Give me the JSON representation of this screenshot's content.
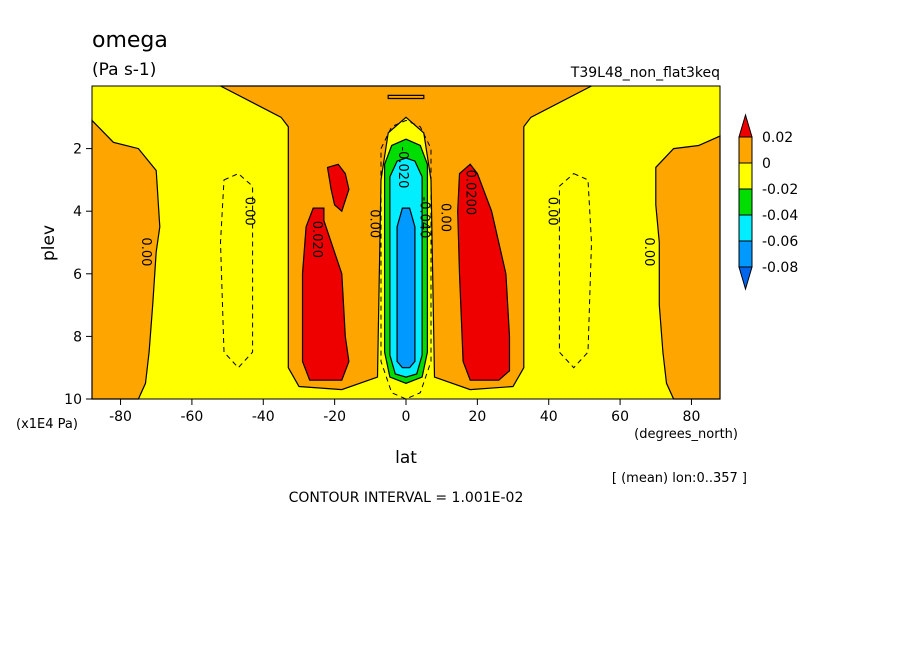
{
  "chart_data": {
    "type": "heatmap",
    "title": "omega",
    "units": "(Pa s-1)",
    "experiment": "T39L48_non_flat3keq",
    "xlabel": "lat",
    "x_units": "(degrees_north)",
    "ylabel": "plev",
    "y_units": "(x1E4 Pa)",
    "xlim": [
      -88,
      88
    ],
    "ylim": [
      10,
      0
    ],
    "x_ticks": [
      -80,
      -60,
      -40,
      -20,
      0,
      20,
      40,
      60,
      80
    ],
    "y_ticks": [
      2,
      4,
      6,
      8,
      10
    ],
    "x_tick_labels": [
      "-80",
      "-60",
      "-40",
      "-20",
      "0",
      "20",
      "40",
      "60",
      "80"
    ],
    "y_tick_labels": [
      "2",
      "4",
      "6",
      "8",
      "10"
    ],
    "averaging_note": "[ (mean) lon:0..357 ]",
    "contour_interval_text": "CONTOUR INTERVAL = 1.001E-02",
    "colorbar": {
      "labels": [
        "0.02",
        "0",
        "-0.02",
        "-0.04",
        "-0.06",
        "-0.08"
      ],
      "levels": [
        {
          "range": "> 0.02",
          "color": "#ee0000"
        },
        {
          "range": "0 to 0.02",
          "color": "#ffa500"
        },
        {
          "range": "-0.02 to 0",
          "color": "#ffff00"
        },
        {
          "range": "-0.04 to -0.02",
          "color": "#00dd00"
        },
        {
          "range": "-0.06 to -0.04",
          "color": "#00eeff"
        },
        {
          "range": "-0.08 to -0.06",
          "color": "#0099ff"
        },
        {
          "range": "< -0.08",
          "color": "#0066ee"
        }
      ]
    },
    "contour_labels": [
      {
        "text": "0.00",
        "lat": -74,
        "plev": 5.3
      },
      {
        "text": "0.00",
        "lat": -45,
        "plev": 4.0
      },
      {
        "text": "0.020",
        "lat": -26,
        "plev": 4.9
      },
      {
        "text": "0.00",
        "lat": -10,
        "plev": 4.4
      },
      {
        "text": "-0.020",
        "lat": -2,
        "plev": 2.6
      },
      {
        "text": "-0.040",
        "lat": 4,
        "plev": 4.2
      },
      {
        "text": "0.00",
        "lat": 10,
        "plev": 4.2
      },
      {
        "text": "0.0200",
        "lat": 17,
        "plev": 3.4
      },
      {
        "text": "0.00",
        "lat": 40,
        "plev": 4.0
      },
      {
        "text": "0.00",
        "lat": 67,
        "plev": 5.3
      }
    ],
    "regions": [
      {
        "level": "0 to 0.02",
        "color": "#ffa500",
        "polygon": [
          [
            -52,
            0
          ],
          [
            -35,
            1.0
          ],
          [
            -33,
            1.3
          ],
          [
            -33,
            9.0
          ],
          [
            -30,
            9.6
          ],
          [
            -18,
            9.7
          ],
          [
            -8,
            9.3
          ],
          [
            -7,
            3.0
          ],
          [
            -5,
            1.5
          ],
          [
            0,
            1.0
          ],
          [
            5,
            1.5
          ],
          [
            7,
            3.0
          ],
          [
            8,
            9.3
          ],
          [
            18,
            9.7
          ],
          [
            30,
            9.6
          ],
          [
            33,
            9.0
          ],
          [
            33,
            1.3
          ],
          [
            35,
            1.0
          ],
          [
            52,
            0
          ]
        ]
      },
      {
        "level": "0 to 0.02",
        "color": "#ffa500",
        "polygon": [
          [
            -88,
            1.1
          ],
          [
            -82,
            1.8
          ],
          [
            -75,
            2.0
          ],
          [
            -70,
            2.7
          ],
          [
            -69,
            4.5
          ],
          [
            -70,
            5.3
          ],
          [
            -71,
            7.0
          ],
          [
            -72,
            8.5
          ],
          [
            -73,
            9.5
          ],
          [
            -75,
            10
          ],
          [
            -88,
            10
          ]
        ]
      },
      {
        "level": "0 to 0.02",
        "color": "#ffa500",
        "polygon": [
          [
            88,
            1.6
          ],
          [
            82,
            1.9
          ],
          [
            75,
            2.0
          ],
          [
            70,
            2.6
          ],
          [
            70,
            3.8
          ],
          [
            71,
            5.0
          ],
          [
            71,
            7.0
          ],
          [
            72,
            8.5
          ],
          [
            73,
            9.5
          ],
          [
            75,
            10
          ],
          [
            88,
            10
          ]
        ]
      },
      {
        "level": "0 to 0.02",
        "color": "#ffa500",
        "polygon": [
          [
            -5,
            0.3
          ],
          [
            5,
            0.3
          ],
          [
            5,
            0.4
          ],
          [
            -5,
            0.4
          ]
        ]
      },
      {
        "level": "> 0.02",
        "color": "#ee0000",
        "polygon": [
          [
            -26,
            3.9
          ],
          [
            -23,
            3.9
          ],
          [
            -23,
            4.3
          ],
          [
            -18,
            6.0
          ],
          [
            -17,
            8.0
          ],
          [
            -16,
            8.8
          ],
          [
            -18,
            9.4
          ],
          [
            -27,
            9.4
          ],
          [
            -29,
            8.8
          ],
          [
            -29,
            6.0
          ],
          [
            -28,
            4.5
          ]
        ]
      },
      {
        "level": "> 0.02",
        "color": "#ee0000",
        "polygon": [
          [
            -22,
            2.6
          ],
          [
            -19,
            2.5
          ],
          [
            -17,
            2.8
          ],
          [
            -16,
            3.3
          ],
          [
            -18,
            4.0
          ],
          [
            -20,
            3.8
          ],
          [
            -21,
            3.3
          ]
        ]
      },
      {
        "level": "> 0.02",
        "color": "#ee0000",
        "polygon": [
          [
            15,
            2.8
          ],
          [
            18,
            2.5
          ],
          [
            20,
            2.8
          ],
          [
            24,
            4.0
          ],
          [
            28,
            6.0
          ],
          [
            29,
            8.0
          ],
          [
            29,
            9.1
          ],
          [
            26,
            9.4
          ],
          [
            18,
            9.4
          ],
          [
            16,
            8.8
          ],
          [
            15,
            6.0
          ],
          [
            14.5,
            4.0
          ]
        ]
      },
      {
        "level": "-0.04 to -0.02",
        "color": "#00dd00",
        "polygon": [
          [
            -6,
            2.5
          ],
          [
            -4,
            1.9
          ],
          [
            0,
            1.7
          ],
          [
            4,
            1.9
          ],
          [
            6,
            2.5
          ],
          [
            6,
            8.5
          ],
          [
            4.5,
            9.3
          ],
          [
            0,
            9.5
          ],
          [
            -4.5,
            9.3
          ],
          [
            -6,
            8.5
          ]
        ]
      },
      {
        "level": "-0.06 to -0.04",
        "color": "#00eeff",
        "polygon": [
          [
            -4.5,
            2.9
          ],
          [
            -2.5,
            2.4
          ],
          [
            0,
            2.3
          ],
          [
            2.5,
            2.4
          ],
          [
            4.5,
            2.9
          ],
          [
            4.5,
            8.6
          ],
          [
            3,
            9.2
          ],
          [
            0,
            9.3
          ],
          [
            -3,
            9.2
          ],
          [
            -4.5,
            8.6
          ]
        ]
      },
      {
        "level": "-0.08 to -0.06",
        "color": "#0099ff",
        "polygon": [
          [
            -2.5,
            4.5
          ],
          [
            -1,
            3.9
          ],
          [
            1,
            3.9
          ],
          [
            2.5,
            4.5
          ],
          [
            2.5,
            8.8
          ],
          [
            1,
            9.0
          ],
          [
            -1,
            9.0
          ],
          [
            -2.5,
            8.8
          ]
        ]
      }
    ]
  }
}
